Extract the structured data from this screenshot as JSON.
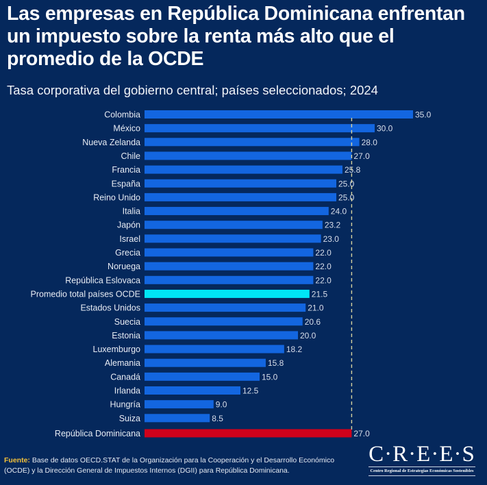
{
  "header": {
    "title": "Las empresas en República Dominicana enfrentan un impuesto sobre la renta más alto que el promedio de la OCDE",
    "subtitle": "Tasa corporativa del gobierno central; países seleccionados; 2024"
  },
  "colors": {
    "background": "#05285c",
    "bar": "#1366e0",
    "highlight_oecd": "#00e5f5",
    "highlight_dr": "#d0021b",
    "reference_line": "#d8d3a0"
  },
  "chart_data": {
    "type": "bar",
    "orientation": "horizontal",
    "title": "Las empresas en República Dominicana enfrentan un impuesto sobre la renta más alto que el promedio de la OCDE",
    "subtitle": "Tasa corporativa del gobierno central; países seleccionados; 2024",
    "xlabel": "",
    "ylabel": "",
    "xlim": [
      0,
      35
    ],
    "grid": false,
    "legend": "none",
    "categories": [
      "Colombia",
      "México",
      "Nueva Zelanda",
      "Chile",
      "Francia",
      "España",
      "Reino Unido",
      "Italia",
      "Japón",
      "Israel",
      "Grecia",
      "Noruega",
      "República Eslovaca",
      "Promedio total países OCDE",
      "Estados Unidos",
      "Suecia",
      "Estonia",
      "Luxemburgo",
      "Alemania",
      "Canadá",
      "Irlanda",
      "Hungría",
      "Suiza",
      "República Dominicana"
    ],
    "values": [
      35.0,
      30.0,
      28.0,
      27.0,
      25.8,
      25.0,
      25.0,
      24.0,
      23.2,
      23.0,
      22.0,
      22.0,
      22.0,
      21.5,
      21.0,
      20.6,
      20.0,
      18.2,
      15.8,
      15.0,
      12.5,
      9.0,
      8.5,
      27.0
    ],
    "value_labels": [
      "35.0",
      "30.0",
      "28.0",
      "27.0",
      "25.8",
      "25.0",
      "25.0",
      "24.0",
      "23.2",
      "23.0",
      "22.0",
      "22.0",
      "22.0",
      "21.5",
      "21.0",
      "20.6",
      "20.0",
      "18.2",
      "15.8",
      "15.0",
      "12.5",
      "9.0",
      "8.5",
      "27.0"
    ],
    "highlights": {
      "Promedio total países OCDE": "oecd",
      "República Dominicana": "dr"
    },
    "reference_line": {
      "value": 27.0,
      "style": "dashed",
      "annotation": "República Dominicana"
    }
  },
  "footer": {
    "source_label": "Fuente:",
    "source_text": " Base de datos OECD.STAT de la Organización para la Cooperación y el Desarrollo Económico (OCDE) y la Dirección General de Impuestos Internos (DGII) para República Dominicana."
  },
  "logo": {
    "name": "C·R·E·E·S",
    "tagline": "Centro Regional de Estrategias Económicas Sostenibles"
  }
}
